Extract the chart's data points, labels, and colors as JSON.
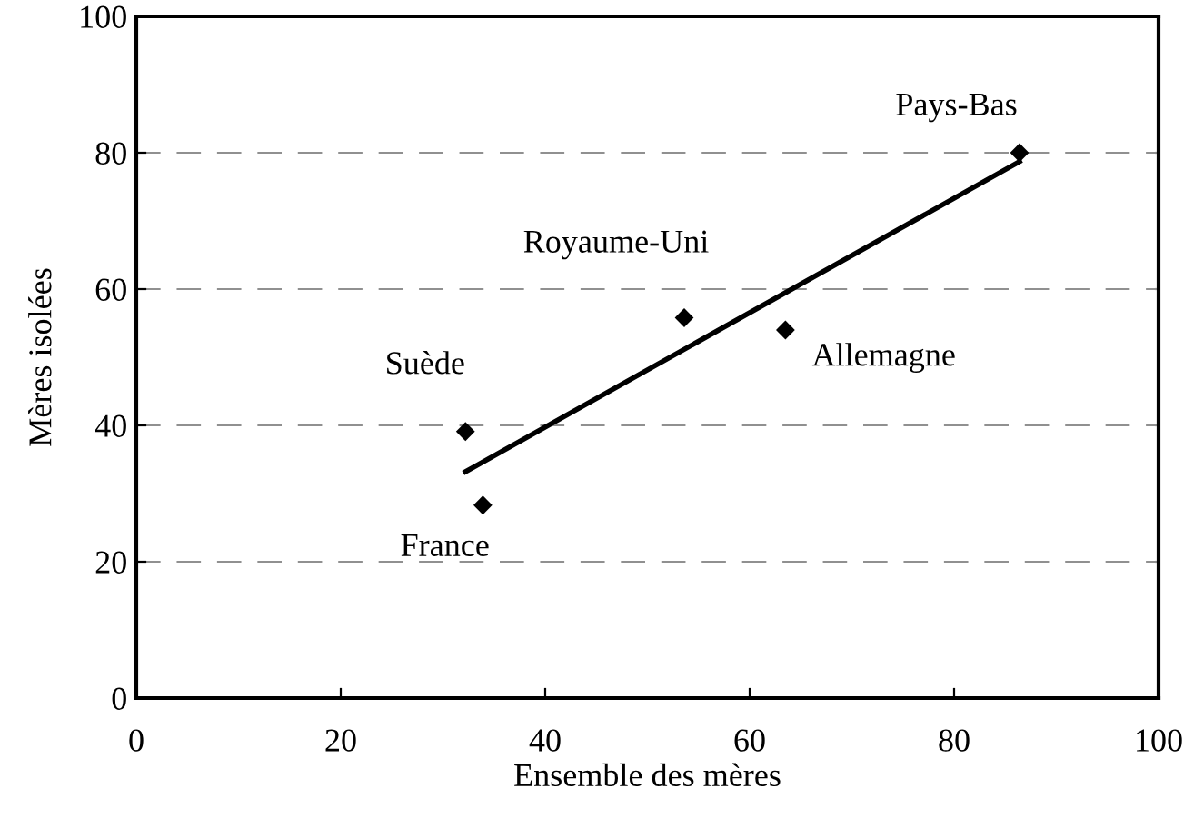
{
  "chart_data": {
    "type": "scatter",
    "xlabel": "Ensemble des mères",
    "ylabel": "Mères isolées",
    "xlim": [
      0,
      100
    ],
    "ylim": [
      0,
      100
    ],
    "xticks": [
      0,
      20,
      40,
      60,
      80,
      100
    ],
    "yticks": [
      0,
      20,
      40,
      60,
      80,
      100
    ],
    "grid": "y",
    "series": [
      {
        "marker": "diamond",
        "color": "#000000",
        "x": [
          32.2,
          33.9,
          53.6,
          63.5,
          86.4
        ],
        "values": [
          39.1,
          28.3,
          55.8,
          54.0,
          80.0
        ]
      },
      {
        "type": "line",
        "color": "#000000",
        "x": [
          32.2,
          86.4
        ],
        "values": [
          33.2,
          78.7
        ],
        "line_style": "solid"
      }
    ],
    "annotations": [
      {
        "text": "Suède",
        "x": 32.2,
        "y": 39.1
      },
      {
        "text": "France",
        "x": 33.9,
        "y": 28.3
      },
      {
        "text": "Royaume-Uni",
        "x": 53.6,
        "y": 55.8
      },
      {
        "text": "Allemagne",
        "x": 63.5,
        "y": 54.0
      },
      {
        "text": "Pays-Bas",
        "x": 86.4,
        "y": 80.0
      }
    ]
  }
}
